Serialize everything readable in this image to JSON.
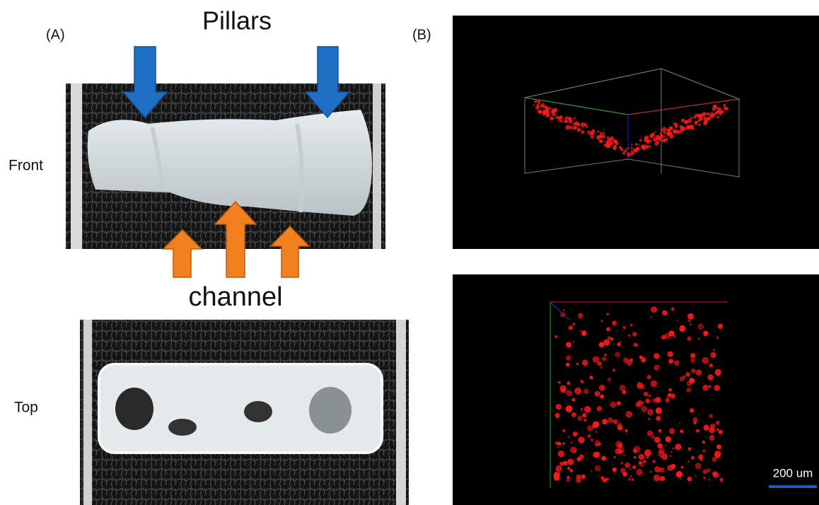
{
  "panel_a": {
    "label": "(A)",
    "pillars_label": "Pillars",
    "front_label": "Front",
    "channel_label": "channel",
    "top_label": "Top"
  },
  "panel_b": {
    "label": "(B)",
    "scale_bar": "200 um"
  }
}
